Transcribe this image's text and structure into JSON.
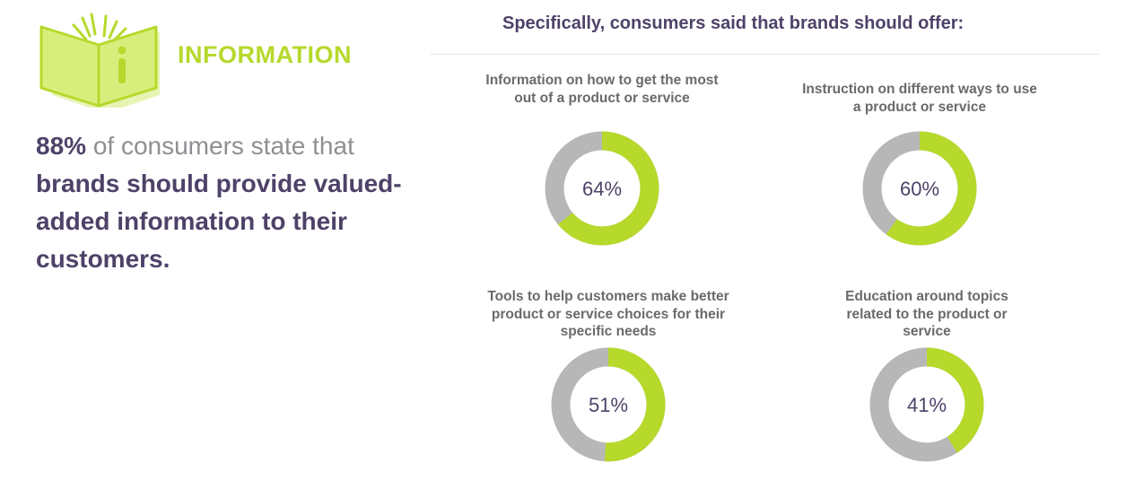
{
  "section": {
    "title": "INFORMATION",
    "headline_pct": "88%",
    "headline_mid": " of consumers state that ",
    "headline_bold": "brands should provide valued-added information to their customers."
  },
  "right_heading": "Specifically, consumers said that brands should offer:",
  "colors": {
    "accent": "#b6d92b",
    "remainder": "#b7b7b7",
    "heading": "#4e4268",
    "muted": "#8f8f93",
    "label": "#6a6a6a"
  },
  "icons": {
    "book": "open-book-info-icon"
  },
  "chart_data": [
    {
      "type": "pie",
      "subtype": "donut",
      "title": "Information on how to get the most out of a product or service",
      "value": 64,
      "label": "64%"
    },
    {
      "type": "pie",
      "subtype": "donut",
      "title": "Instruction on different ways to use a product or service",
      "value": 60,
      "label": "60%"
    },
    {
      "type": "pie",
      "subtype": "donut",
      "title": "Tools to help customers make better product or service choices for their specific needs",
      "value": 51,
      "label": "51%"
    },
    {
      "type": "pie",
      "subtype": "donut",
      "title": "Education around topics related to the product or service",
      "value": 41,
      "label": "41%"
    }
  ]
}
